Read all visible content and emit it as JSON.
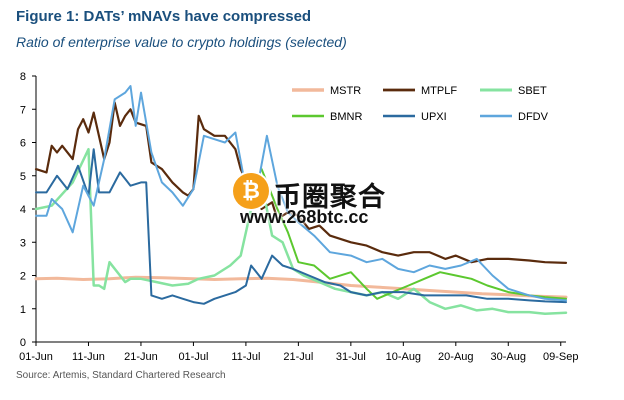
{
  "header": {
    "title": "Figure 1: DATs’ mNAVs have compressed",
    "subtitle": "Ratio of enterprise value to crypto holdings (selected)"
  },
  "source": "Source: Artemis, Standard Chartered Research",
  "watermark": {
    "name": "币圈聚合",
    "url": "www.268btc.cc",
    "icon": "bitcoin-icon"
  },
  "chart_data": {
    "type": "line",
    "title": "Figure 1: DATs’ mNAVs have compressed",
    "subtitle": "Ratio of enterprise value to crypto holdings (selected)",
    "xlabel": "",
    "ylabel": "",
    "x_start": "2025-06-01",
    "x_end": "2025-09-10",
    "xticks": [
      "01-Jun",
      "11-Jun",
      "21-Jun",
      "01-Jul",
      "11-Jul",
      "21-Jul",
      "31-Jul",
      "10-Aug",
      "20-Aug",
      "30-Aug",
      "09-Sep"
    ],
    "ylim": [
      0,
      8
    ],
    "yticks": [
      0,
      1,
      2,
      3,
      4,
      5,
      6,
      7,
      8
    ],
    "grid": false,
    "legend": "top-right",
    "series": [
      {
        "name": "MSTR",
        "color": "#f2b99b",
        "width": 3,
        "x": [
          "2025-06-01",
          "2025-06-05",
          "2025-06-10",
          "2025-06-15",
          "2025-06-20",
          "2025-06-25",
          "2025-07-01",
          "2025-07-05",
          "2025-07-10",
          "2025-07-15",
          "2025-07-20",
          "2025-07-25",
          "2025-07-31",
          "2025-08-05",
          "2025-08-10",
          "2025-08-15",
          "2025-08-20",
          "2025-08-25",
          "2025-08-30",
          "2025-09-04",
          "2025-09-10"
        ],
        "y": [
          1.9,
          1.92,
          1.88,
          1.9,
          1.95,
          1.93,
          1.9,
          1.88,
          1.9,
          1.92,
          1.88,
          1.8,
          1.7,
          1.65,
          1.6,
          1.55,
          1.5,
          1.45,
          1.42,
          1.38,
          1.35
        ]
      },
      {
        "name": "MTPLF",
        "color": "#5a2b0d",
        "width": 2.2,
        "x": [
          "2025-06-01",
          "2025-06-03",
          "2025-06-04",
          "2025-06-05",
          "2025-06-06",
          "2025-06-08",
          "2025-06-09",
          "2025-06-10",
          "2025-06-11",
          "2025-06-12",
          "2025-06-14",
          "2025-06-15",
          "2025-06-16",
          "2025-06-17",
          "2025-06-18",
          "2025-06-19",
          "2025-06-20",
          "2025-06-22",
          "2025-06-23",
          "2025-06-25",
          "2025-06-27",
          "2025-06-29",
          "2025-06-30",
          "2025-07-01",
          "2025-07-02",
          "2025-07-03",
          "2025-07-05",
          "2025-07-07",
          "2025-07-09",
          "2025-07-10",
          "2025-07-12",
          "2025-07-14",
          "2025-07-16",
          "2025-07-17",
          "2025-07-19",
          "2025-07-21",
          "2025-07-23",
          "2025-07-25",
          "2025-07-27",
          "2025-07-31",
          "2025-08-03",
          "2025-08-06",
          "2025-08-09",
          "2025-08-12",
          "2025-08-15",
          "2025-08-18",
          "2025-08-20",
          "2025-08-23",
          "2025-08-26",
          "2025-08-30",
          "2025-09-03",
          "2025-09-06",
          "2025-09-10"
        ],
        "y": [
          5.2,
          5.1,
          5.9,
          5.7,
          5.9,
          5.5,
          6.4,
          6.7,
          6.3,
          6.9,
          5.5,
          6.0,
          7.2,
          6.5,
          6.8,
          7.0,
          6.6,
          6.5,
          5.4,
          5.2,
          4.8,
          4.5,
          4.4,
          4.6,
          6.8,
          6.4,
          6.2,
          6.2,
          5.8,
          5.2,
          4.5,
          4.0,
          4.2,
          3.7,
          3.9,
          3.8,
          3.4,
          3.5,
          3.2,
          3.0,
          2.9,
          2.7,
          2.6,
          2.7,
          2.7,
          2.5,
          2.6,
          2.4,
          2.5,
          2.5,
          2.45,
          2.4,
          2.38
        ]
      },
      {
        "name": "SBET",
        "color": "#86e3a0",
        "width": 2.5,
        "x": [
          "2025-06-01",
          "2025-06-04",
          "2025-06-08",
          "2025-06-11",
          "2025-06-12",
          "2025-06-13",
          "2025-06-14",
          "2025-06-15",
          "2025-06-17",
          "2025-06-18",
          "2025-06-19",
          "2025-06-21",
          "2025-06-24",
          "2025-06-27",
          "2025-06-30",
          "2025-07-02",
          "2025-07-05",
          "2025-07-08",
          "2025-07-10",
          "2025-07-12",
          "2025-07-14",
          "2025-07-16",
          "2025-07-18",
          "2025-07-20",
          "2025-07-22",
          "2025-07-25",
          "2025-07-28",
          "2025-07-31",
          "2025-08-03",
          "2025-08-06",
          "2025-08-09",
          "2025-08-12",
          "2025-08-15",
          "2025-08-18",
          "2025-08-21",
          "2025-08-24",
          "2025-08-27",
          "2025-08-30",
          "2025-09-03",
          "2025-09-06",
          "2025-09-10"
        ],
        "y": [
          4.0,
          4.1,
          4.8,
          5.8,
          1.7,
          1.7,
          1.6,
          2.4,
          2.0,
          1.8,
          1.9,
          1.9,
          1.8,
          1.7,
          1.75,
          1.9,
          2.0,
          2.3,
          2.6,
          4.0,
          4.8,
          3.2,
          3.0,
          2.2,
          2.0,
          1.8,
          1.6,
          1.5,
          1.4,
          1.5,
          1.3,
          1.6,
          1.2,
          1.0,
          1.1,
          0.95,
          1.0,
          0.9,
          0.9,
          0.85,
          0.88
        ]
      },
      {
        "name": "BMNR",
        "color": "#5cc82f",
        "width": 2,
        "x": [
          "2025-07-14",
          "2025-07-15",
          "2025-07-17",
          "2025-07-19",
          "2025-07-21",
          "2025-07-24",
          "2025-07-27",
          "2025-07-31",
          "2025-08-03",
          "2025-08-05",
          "2025-08-08",
          "2025-08-11",
          "2025-08-14",
          "2025-08-17",
          "2025-08-20",
          "2025-08-23",
          "2025-08-26",
          "2025-08-30",
          "2025-09-03",
          "2025-09-06",
          "2025-09-10"
        ],
        "y": [
          5.2,
          4.8,
          4.0,
          3.3,
          2.4,
          2.3,
          1.9,
          2.1,
          1.6,
          1.3,
          1.5,
          1.7,
          1.9,
          2.1,
          2.0,
          1.9,
          1.7,
          1.5,
          1.4,
          1.35,
          1.3
        ]
      },
      {
        "name": "UPXI",
        "color": "#2b6a9f",
        "width": 2,
        "x": [
          "2025-06-01",
          "2025-06-03",
          "2025-06-05",
          "2025-06-06",
          "2025-06-07",
          "2025-06-09",
          "2025-06-11",
          "2025-06-12",
          "2025-06-13",
          "2025-06-15",
          "2025-06-17",
          "2025-06-19",
          "2025-06-21",
          "2025-06-22",
          "2025-06-23",
          "2025-06-25",
          "2025-06-27",
          "2025-06-29",
          "2025-07-01",
          "2025-07-03",
          "2025-07-05",
          "2025-07-07",
          "2025-07-09",
          "2025-07-11",
          "2025-07-12",
          "2025-07-14",
          "2025-07-16",
          "2025-07-18",
          "2025-07-20",
          "2025-07-23",
          "2025-07-26",
          "2025-07-29",
          "2025-07-31",
          "2025-08-03",
          "2025-08-06",
          "2025-08-10",
          "2025-08-14",
          "2025-08-18",
          "2025-08-22",
          "2025-08-26",
          "2025-08-30",
          "2025-09-03",
          "2025-09-06",
          "2025-09-10"
        ],
        "y": [
          4.5,
          4.5,
          5.0,
          4.8,
          4.6,
          5.3,
          4.4,
          5.8,
          4.5,
          4.5,
          5.1,
          4.7,
          4.8,
          4.8,
          1.4,
          1.3,
          1.4,
          1.3,
          1.2,
          1.15,
          1.3,
          1.4,
          1.5,
          1.7,
          2.3,
          1.9,
          2.6,
          2.3,
          2.2,
          2.0,
          1.8,
          1.7,
          1.5,
          1.4,
          1.5,
          1.5,
          1.4,
          1.4,
          1.4,
          1.3,
          1.3,
          1.25,
          1.22,
          1.2
        ]
      },
      {
        "name": "DFDV",
        "color": "#5ea6dd",
        "width": 2,
        "x": [
          "2025-06-01",
          "2025-06-03",
          "2025-06-04",
          "2025-06-06",
          "2025-06-08",
          "2025-06-10",
          "2025-06-12",
          "2025-06-14",
          "2025-06-16",
          "2025-06-18",
          "2025-06-19",
          "2025-06-20",
          "2025-06-21",
          "2025-06-23",
          "2025-06-25",
          "2025-06-27",
          "2025-06-29",
          "2025-07-01",
          "2025-07-03",
          "2025-07-05",
          "2025-07-07",
          "2025-07-09",
          "2025-07-11",
          "2025-07-12",
          "2025-07-13",
          "2025-07-15",
          "2025-07-17",
          "2025-07-19",
          "2025-07-21",
          "2025-07-24",
          "2025-07-27",
          "2025-07-31",
          "2025-08-03",
          "2025-08-06",
          "2025-08-09",
          "2025-08-12",
          "2025-08-15",
          "2025-08-18",
          "2025-08-21",
          "2025-08-24",
          "2025-08-27",
          "2025-08-30",
          "2025-09-03",
          "2025-09-06",
          "2025-09-10"
        ],
        "y": [
          3.8,
          3.8,
          4.3,
          4.0,
          3.3,
          4.7,
          4.1,
          5.5,
          7.3,
          7.5,
          7.7,
          6.5,
          7.5,
          5.7,
          4.8,
          4.5,
          4.1,
          4.6,
          6.2,
          6.1,
          6.0,
          6.3,
          4.6,
          4.7,
          4.5,
          6.2,
          4.7,
          3.9,
          3.6,
          3.2,
          2.7,
          2.6,
          2.4,
          2.5,
          2.2,
          2.1,
          2.3,
          2.2,
          2.3,
          2.5,
          2.0,
          1.6,
          1.4,
          1.3,
          1.25
        ]
      }
    ]
  }
}
